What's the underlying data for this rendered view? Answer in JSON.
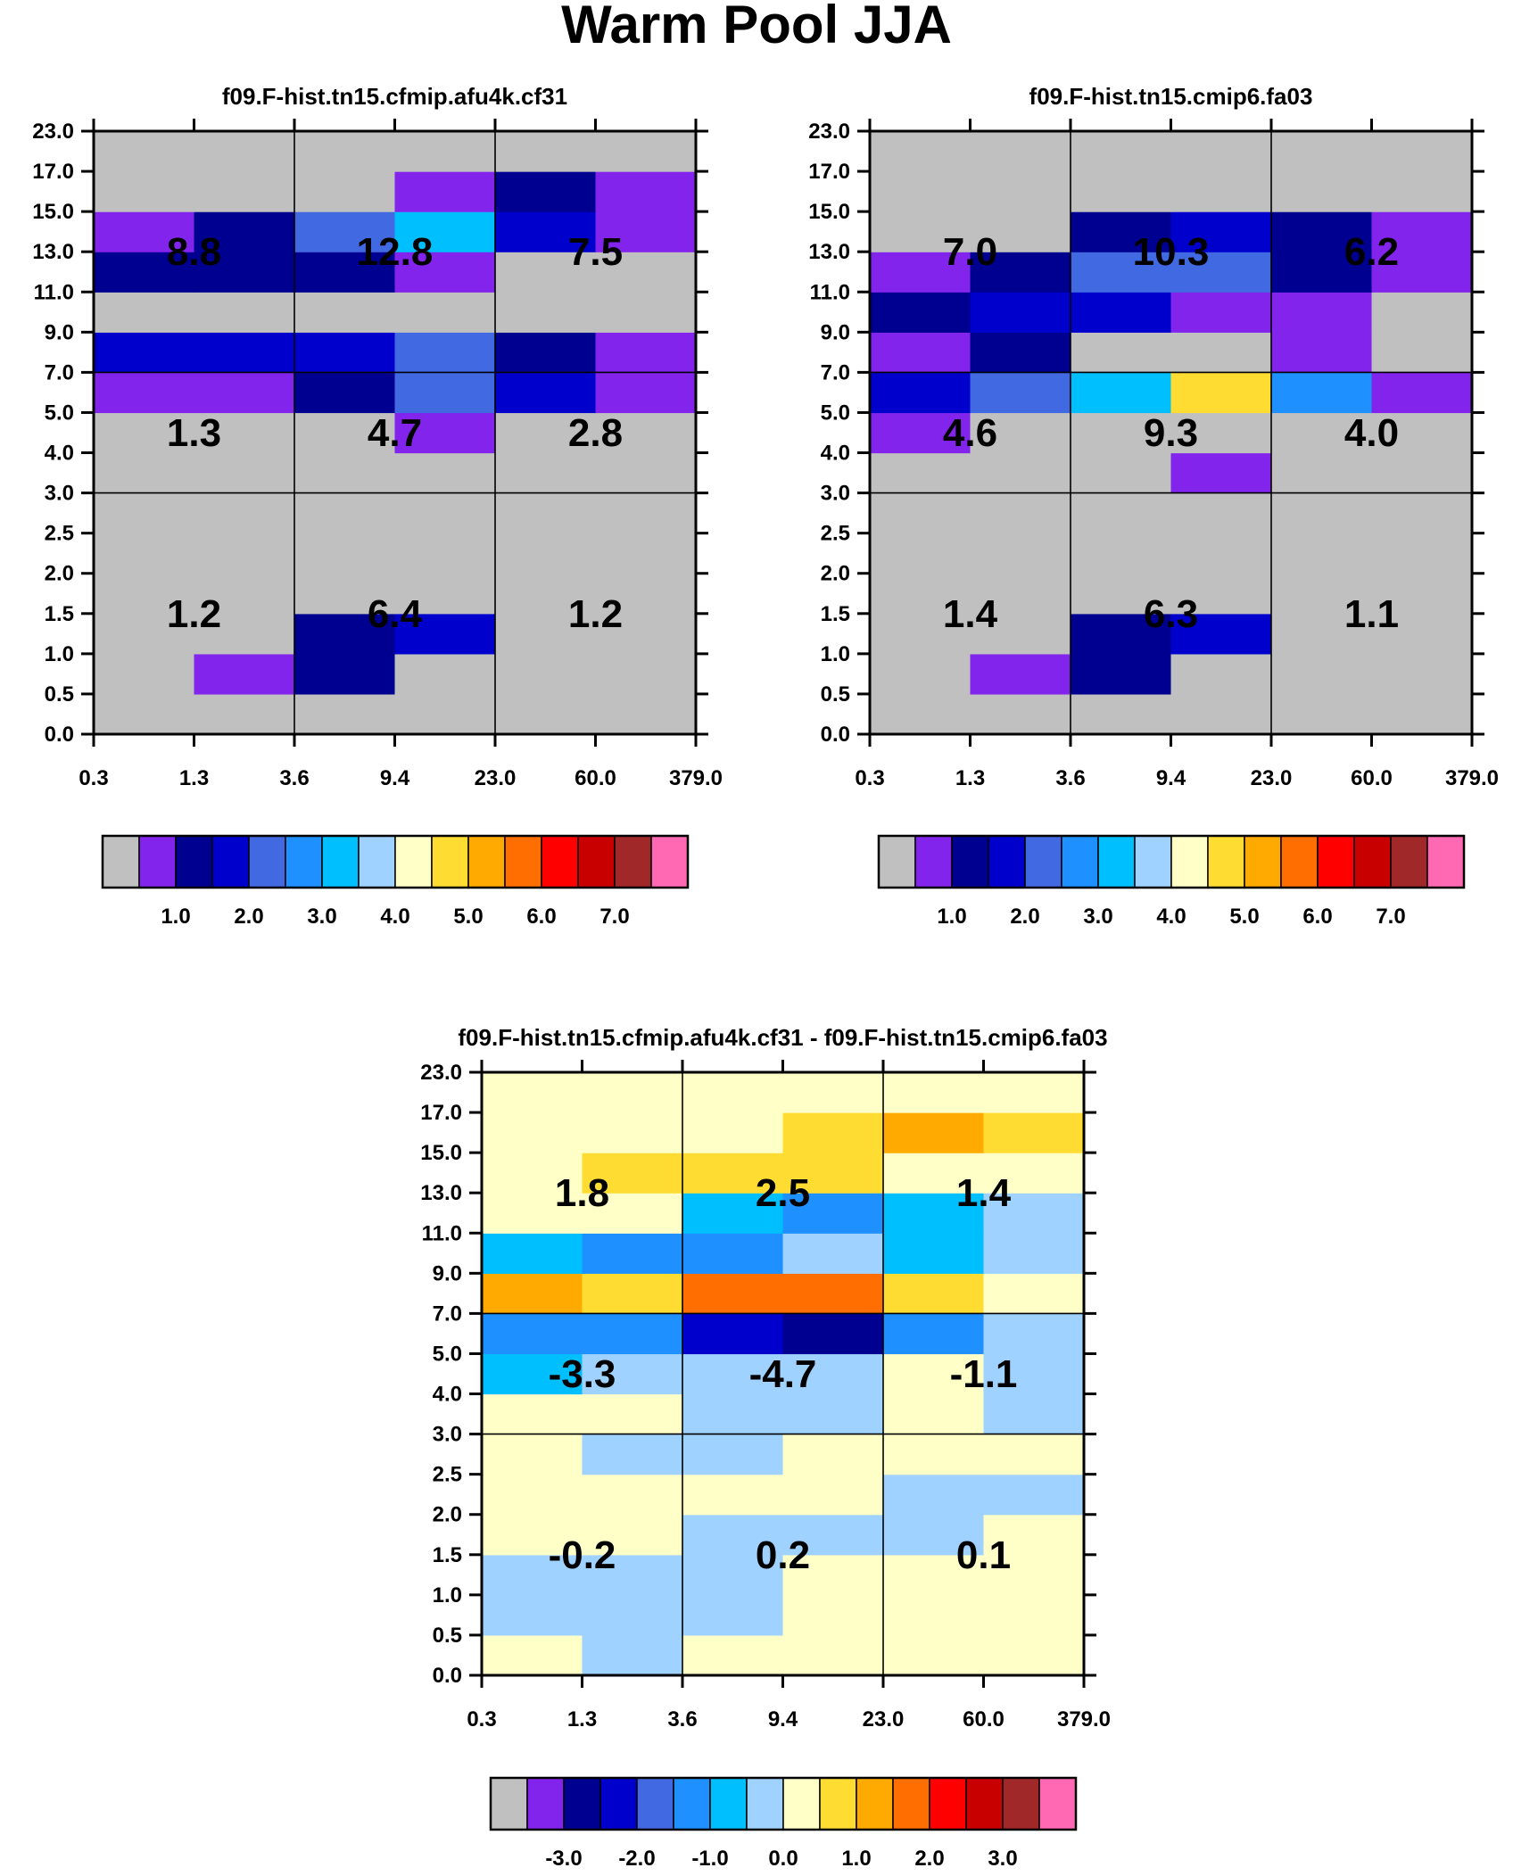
{
  "title": "Warm Pool JJA",
  "colors": {
    "missing": "#c0c0c0",
    "fill": [
      "#c0c0c0",
      "#8224ec",
      "#000090",
      "#0000cd",
      "#4169e1",
      "#1e90ff",
      "#00bfff",
      "#a0d2ff",
      "#ffffc8",
      "#ffdc32",
      "#ffaa00",
      "#ff6e00",
      "#ff0000",
      "#c80000",
      "#a02828",
      "#ff69b4"
    ]
  },
  "chart_data": [
    {
      "type": "heatmap",
      "title": "f09.F-hist.tn15.cfmip.afu4k.cf31",
      "xlabel": "",
      "ylabel": "",
      "x_tick_labels": [
        "0.3",
        "1.3",
        "3.6",
        "9.4",
        "23.0",
        "60.0",
        "379.0"
      ],
      "y_tick_labels": [
        "0.0",
        "0.5",
        "1.0",
        "1.5",
        "2.0",
        "2.5",
        "3.0",
        "4.0",
        "5.0",
        "7.0",
        "9.0",
        "11.0",
        "13.0",
        "15.0",
        "17.0",
        "23.0"
      ],
      "cells": [
        [
          0,
          0,
          0,
          0,
          0,
          0
        ],
        [
          0,
          1,
          2,
          0,
          0,
          0
        ],
        [
          0,
          0,
          2,
          3,
          0,
          0
        ],
        [
          0,
          0,
          0,
          0,
          0,
          0
        ],
        [
          0,
          0,
          0,
          0,
          0,
          0
        ],
        [
          0,
          0,
          0,
          0,
          0,
          0
        ],
        [
          0,
          0,
          0,
          0,
          0,
          0
        ],
        [
          0,
          0,
          0,
          1,
          0,
          0
        ],
        [
          1,
          1,
          2,
          4,
          3,
          1
        ],
        [
          3,
          3,
          3,
          4,
          2,
          1
        ],
        [
          0,
          0,
          0,
          0,
          0,
          0
        ],
        [
          2,
          2,
          2,
          1,
          0,
          0
        ],
        [
          1,
          2,
          4,
          6,
          3,
          1
        ],
        [
          0,
          0,
          0,
          1,
          2,
          1
        ],
        [
          0,
          0,
          0,
          0,
          0,
          0
        ]
      ],
      "box_values": [
        {
          "col": 0,
          "row": 2,
          "label": "8.8"
        },
        {
          "col": 1,
          "row": 2,
          "label": "12.8"
        },
        {
          "col": 2,
          "row": 2,
          "label": "7.5"
        },
        {
          "col": 0,
          "row": 1,
          "label": "1.3"
        },
        {
          "col": 1,
          "row": 1,
          "label": "4.7"
        },
        {
          "col": 2,
          "row": 1,
          "label": "2.8"
        },
        {
          "col": 0,
          "row": 0,
          "label": "1.2"
        },
        {
          "col": 1,
          "row": 0,
          "label": "6.4"
        },
        {
          "col": 2,
          "row": 0,
          "label": "1.2"
        }
      ],
      "colorbar": {
        "colors": [
          "#c0c0c0",
          "#8224ec",
          "#000090",
          "#0000cd",
          "#4169e1",
          "#1e90ff",
          "#00bfff",
          "#a0d2ff",
          "#ffffc8",
          "#ffdc32",
          "#ffaa00",
          "#ff6e00",
          "#ff0000",
          "#c80000",
          "#a02828",
          "#ff69b4"
        ],
        "labels": [
          {
            "after_box": 1,
            "text": "1.0"
          },
          {
            "after_box": 3,
            "text": "2.0"
          },
          {
            "after_box": 5,
            "text": "3.0"
          },
          {
            "after_box": 7,
            "text": "4.0"
          },
          {
            "after_box": 9,
            "text": "5.0"
          },
          {
            "after_box": 11,
            "text": "6.0"
          },
          {
            "after_box": 13,
            "text": "7.0"
          }
        ]
      }
    },
    {
      "type": "heatmap",
      "title": "f09.F-hist.tn15.cmip6.fa03",
      "xlabel": "",
      "ylabel": "",
      "x_tick_labels": [
        "0.3",
        "1.3",
        "3.6",
        "9.4",
        "23.0",
        "60.0",
        "379.0"
      ],
      "y_tick_labels": [
        "0.0",
        "0.5",
        "1.0",
        "1.5",
        "2.0",
        "2.5",
        "3.0",
        "4.0",
        "5.0",
        "7.0",
        "9.0",
        "11.0",
        "13.0",
        "15.0",
        "17.0",
        "23.0"
      ],
      "cells": [
        [
          0,
          0,
          0,
          0,
          0,
          0
        ],
        [
          0,
          1,
          2,
          0,
          0,
          0
        ],
        [
          0,
          0,
          2,
          3,
          0,
          0
        ],
        [
          0,
          0,
          0,
          0,
          0,
          0
        ],
        [
          0,
          0,
          0,
          0,
          0,
          0
        ],
        [
          0,
          0,
          0,
          0,
          0,
          0
        ],
        [
          0,
          0,
          0,
          1,
          0,
          0
        ],
        [
          1,
          0,
          0,
          0,
          0,
          0
        ],
        [
          3,
          4,
          6,
          9,
          5,
          1
        ],
        [
          1,
          2,
          0,
          0,
          1,
          0
        ],
        [
          2,
          3,
          3,
          1,
          1,
          0
        ],
        [
          1,
          2,
          4,
          4,
          2,
          1
        ],
        [
          0,
          0,
          2,
          3,
          2,
          1
        ],
        [
          0,
          0,
          0,
          0,
          0,
          0
        ],
        [
          0,
          0,
          0,
          0,
          0,
          0
        ]
      ],
      "box_values": [
        {
          "col": 0,
          "row": 2,
          "label": "7.0"
        },
        {
          "col": 1,
          "row": 2,
          "label": "10.3"
        },
        {
          "col": 2,
          "row": 2,
          "label": "6.2"
        },
        {
          "col": 0,
          "row": 1,
          "label": "4.6"
        },
        {
          "col": 1,
          "row": 1,
          "label": "9.3"
        },
        {
          "col": 2,
          "row": 1,
          "label": "4.0"
        },
        {
          "col": 0,
          "row": 0,
          "label": "1.4"
        },
        {
          "col": 1,
          "row": 0,
          "label": "6.3"
        },
        {
          "col": 2,
          "row": 0,
          "label": "1.1"
        }
      ],
      "colorbar": {
        "colors": [
          "#c0c0c0",
          "#8224ec",
          "#000090",
          "#0000cd",
          "#4169e1",
          "#1e90ff",
          "#00bfff",
          "#a0d2ff",
          "#ffffc8",
          "#ffdc32",
          "#ffaa00",
          "#ff6e00",
          "#ff0000",
          "#c80000",
          "#a02828",
          "#ff69b4"
        ],
        "labels": [
          {
            "after_box": 1,
            "text": "1.0"
          },
          {
            "after_box": 3,
            "text": "2.0"
          },
          {
            "after_box": 5,
            "text": "3.0"
          },
          {
            "after_box": 7,
            "text": "4.0"
          },
          {
            "after_box": 9,
            "text": "5.0"
          },
          {
            "after_box": 11,
            "text": "6.0"
          },
          {
            "after_box": 13,
            "text": "7.0"
          }
        ]
      }
    },
    {
      "type": "heatmap",
      "title": "f09.F-hist.tn15.cfmip.afu4k.cf31 - f09.F-hist.tn15.cmip6.fa03",
      "xlabel": "",
      "ylabel": "",
      "x_tick_labels": [
        "0.3",
        "1.3",
        "3.6",
        "9.4",
        "23.0",
        "60.0",
        "379.0"
      ],
      "y_tick_labels": [
        "0.0",
        "0.5",
        "1.0",
        "1.5",
        "2.0",
        "2.5",
        "3.0",
        "4.0",
        "5.0",
        "7.0",
        "9.0",
        "11.0",
        "13.0",
        "15.0",
        "17.0",
        "23.0"
      ],
      "cells": [
        [
          8,
          7,
          8,
          8,
          8,
          8
        ],
        [
          7,
          7,
          7,
          8,
          8,
          8
        ],
        [
          7,
          7,
          7,
          8,
          8,
          8
        ],
        [
          8,
          8,
          7,
          7,
          7,
          8
        ],
        [
          8,
          8,
          8,
          8,
          7,
          7
        ],
        [
          8,
          7,
          7,
          8,
          8,
          8
        ],
        [
          8,
          8,
          7,
          7,
          8,
          7
        ],
        [
          6,
          7,
          7,
          7,
          8,
          7
        ],
        [
          5,
          5,
          3,
          2,
          5,
          7
        ],
        [
          10,
          9,
          11,
          11,
          9,
          8
        ],
        [
          6,
          5,
          5,
          7,
          6,
          7
        ],
        [
          8,
          8,
          6,
          5,
          6,
          7
        ],
        [
          8,
          9,
          9,
          9,
          8,
          8
        ],
        [
          8,
          8,
          8,
          9,
          10,
          9
        ],
        [
          8,
          8,
          8,
          8,
          8,
          8
        ]
      ],
      "box_values": [
        {
          "col": 0,
          "row": 2,
          "label": "1.8"
        },
        {
          "col": 1,
          "row": 2,
          "label": "2.5"
        },
        {
          "col": 2,
          "row": 2,
          "label": "1.4"
        },
        {
          "col": 0,
          "row": 1,
          "label": "-3.3"
        },
        {
          "col": 1,
          "row": 1,
          "label": "-4.7"
        },
        {
          "col": 2,
          "row": 1,
          "label": "-1.1"
        },
        {
          "col": 0,
          "row": 0,
          "label": "-0.2"
        },
        {
          "col": 1,
          "row": 0,
          "label": "0.2"
        },
        {
          "col": 2,
          "row": 0,
          "label": "0.1"
        }
      ],
      "colorbar": {
        "colors": [
          "#c0c0c0",
          "#8224ec",
          "#000090",
          "#0000cd",
          "#4169e1",
          "#1e90ff",
          "#00bfff",
          "#a0d2ff",
          "#ffffc8",
          "#ffdc32",
          "#ffaa00",
          "#ff6e00",
          "#ff0000",
          "#c80000",
          "#a02828",
          "#ff69b4"
        ],
        "labels": [
          {
            "after_box": 1,
            "text": "-3.0"
          },
          {
            "after_box": 3,
            "text": "-2.0"
          },
          {
            "after_box": 5,
            "text": "-1.0"
          },
          {
            "after_box": 7,
            "text": "0.0"
          },
          {
            "after_box": 9,
            "text": "1.0"
          },
          {
            "after_box": 11,
            "text": "2.0"
          },
          {
            "after_box": 13,
            "text": "3.0"
          }
        ]
      }
    }
  ]
}
